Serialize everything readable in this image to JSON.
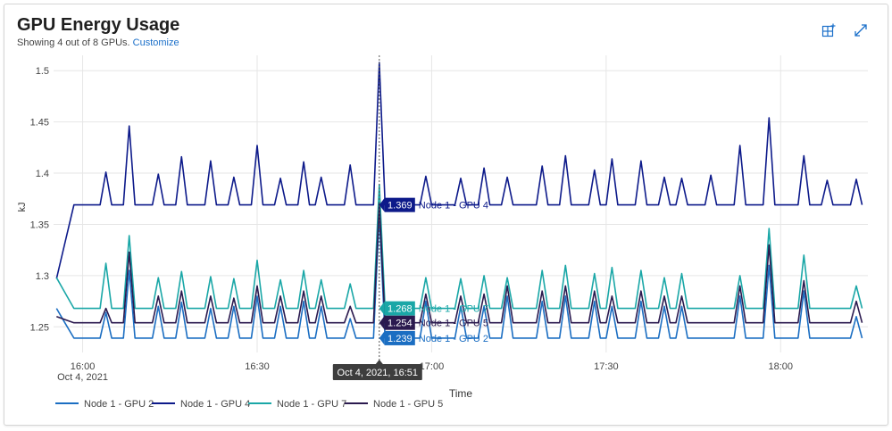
{
  "header": {
    "title": "GPU Energy Usage",
    "subtitle_prefix": "Showing 4 out of 8 GPUs.",
    "customize_label": "Customize",
    "pin_icon": "add-to-dashboard-icon",
    "expand_icon": "expand-icon"
  },
  "chart_data": {
    "type": "line",
    "ylabel": "kJ",
    "xlabel": "Time",
    "ylim": [
      1.225,
      1.515
    ],
    "yticks": [
      "1.25",
      "1.3",
      "1.35",
      "1.4",
      "1.45",
      "1.5"
    ],
    "xticks": [
      {
        "label": "16:00",
        "sublabel": "Oct 4, 2021",
        "t": 0
      },
      {
        "label": "16:30",
        "sublabel": "",
        "t": 30
      },
      {
        "label": "17:00",
        "sublabel": "",
        "t": 60
      },
      {
        "label": "17:30",
        "sublabel": "",
        "t": 90
      },
      {
        "label": "18:00",
        "sublabel": "",
        "t": 120
      }
    ],
    "x_range_minutes": [
      -5,
      135
    ],
    "grid": true,
    "legend_position": "bottom-left",
    "hover": {
      "time_label": "Oct 4, 2021, 16:51",
      "t": 51,
      "entries": [
        {
          "value": "1.369",
          "series": "Node 1 - GPU 4",
          "y": 1.369,
          "color": "#0d1a8a"
        },
        {
          "value": "1.268",
          "series": "Node 1 - GPU 7",
          "y": 1.268,
          "color": "#1aa7a7"
        },
        {
          "value": "1.254",
          "series": "Node 1 - GPU 5",
          "y": 1.254,
          "color": "#2b1a4f"
        },
        {
          "value": "1.239",
          "series": "Node 1 - GPU 2",
          "y": 1.239,
          "color": "#1b6ec2"
        }
      ]
    },
    "series": [
      {
        "name": "Node 1 - GPU 2",
        "color": "#1b6ec2",
        "base": 1.239,
        "start": 1.268,
        "spikes": [
          [
            4,
            1.264
          ],
          [
            8,
            1.305
          ],
          [
            13,
            1.27
          ],
          [
            17,
            1.274
          ],
          [
            22,
            1.268
          ],
          [
            26,
            1.27
          ],
          [
            30,
            1.28
          ],
          [
            34,
            1.27
          ],
          [
            38,
            1.275
          ],
          [
            41,
            1.27
          ],
          [
            46,
            1.258
          ],
          [
            51,
            1.36
          ],
          [
            59,
            1.275
          ],
          [
            65,
            1.27
          ],
          [
            69,
            1.27
          ],
          [
            73,
            1.28
          ],
          [
            79,
            1.275
          ],
          [
            83,
            1.28
          ],
          [
            88,
            1.275
          ],
          [
            91,
            1.27
          ],
          [
            96,
            1.275
          ],
          [
            100,
            1.27
          ],
          [
            103,
            1.27
          ],
          [
            113,
            1.28
          ],
          [
            118,
            1.31
          ],
          [
            124,
            1.285
          ],
          [
            133,
            1.26
          ]
        ]
      },
      {
        "name": "Node 1 - GPU 4",
        "color": "#0d1a8a",
        "base": 1.369,
        "start": 1.297,
        "spikes": [
          [
            4,
            1.401
          ],
          [
            8,
            1.446
          ],
          [
            13,
            1.399
          ],
          [
            17,
            1.416
          ],
          [
            22,
            1.412
          ],
          [
            26,
            1.396
          ],
          [
            30,
            1.427
          ],
          [
            34,
            1.395
          ],
          [
            38,
            1.411
          ],
          [
            41,
            1.396
          ],
          [
            46,
            1.408
          ],
          [
            51,
            1.508
          ],
          [
            59,
            1.397
          ],
          [
            65,
            1.395
          ],
          [
            69,
            1.405
          ],
          [
            73,
            1.396
          ],
          [
            79,
            1.407
          ],
          [
            83,
            1.417
          ],
          [
            88,
            1.403
          ],
          [
            91,
            1.414
          ],
          [
            96,
            1.412
          ],
          [
            100,
            1.396
          ],
          [
            103,
            1.395
          ],
          [
            108,
            1.398
          ],
          [
            113,
            1.427
          ],
          [
            118,
            1.454
          ],
          [
            124,
            1.417
          ],
          [
            128,
            1.393
          ],
          [
            133,
            1.394
          ]
        ]
      },
      {
        "name": "Node 1 - GPU 7",
        "color": "#1aa7a7",
        "base": 1.268,
        "start": 1.298,
        "spikes": [
          [
            4,
            1.312
          ],
          [
            8,
            1.339
          ],
          [
            13,
            1.298
          ],
          [
            17,
            1.304
          ],
          [
            22,
            1.299
          ],
          [
            26,
            1.297
          ],
          [
            30,
            1.315
          ],
          [
            34,
            1.296
          ],
          [
            38,
            1.305
          ],
          [
            41,
            1.296
          ],
          [
            46,
            1.292
          ],
          [
            51,
            1.389
          ],
          [
            59,
            1.298
          ],
          [
            65,
            1.297
          ],
          [
            69,
            1.3
          ],
          [
            73,
            1.298
          ],
          [
            79,
            1.305
          ],
          [
            83,
            1.31
          ],
          [
            88,
            1.302
          ],
          [
            91,
            1.308
          ],
          [
            96,
            1.305
          ],
          [
            100,
            1.298
          ],
          [
            103,
            1.302
          ],
          [
            113,
            1.3
          ],
          [
            118,
            1.346
          ],
          [
            124,
            1.32
          ],
          [
            133,
            1.29
          ]
        ]
      },
      {
        "name": "Node 1 - GPU 5",
        "color": "#2b1a4f",
        "base": 1.254,
        "start": 1.26,
        "spikes": [
          [
            4,
            1.268
          ],
          [
            8,
            1.323
          ],
          [
            13,
            1.28
          ],
          [
            17,
            1.285
          ],
          [
            22,
            1.28
          ],
          [
            26,
            1.278
          ],
          [
            30,
            1.29
          ],
          [
            34,
            1.28
          ],
          [
            38,
            1.285
          ],
          [
            41,
            1.28
          ],
          [
            46,
            1.27
          ],
          [
            51,
            1.37
          ],
          [
            59,
            1.282
          ],
          [
            65,
            1.28
          ],
          [
            69,
            1.282
          ],
          [
            73,
            1.29
          ],
          [
            79,
            1.285
          ],
          [
            83,
            1.29
          ],
          [
            88,
            1.285
          ],
          [
            91,
            1.28
          ],
          [
            96,
            1.285
          ],
          [
            100,
            1.28
          ],
          [
            103,
            1.28
          ],
          [
            113,
            1.29
          ],
          [
            118,
            1.33
          ],
          [
            124,
            1.295
          ],
          [
            133,
            1.275
          ]
        ]
      }
    ]
  }
}
